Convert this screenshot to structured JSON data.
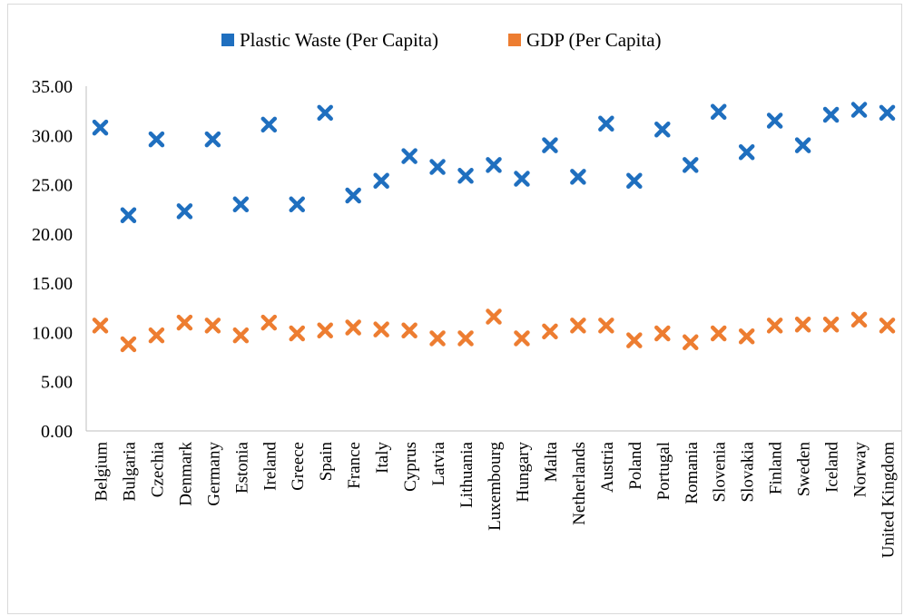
{
  "chart_data": {
    "type": "scatter",
    "categories": [
      "Belgium",
      "Bulgaria",
      "Czechia",
      "Denmark",
      "Germany",
      "Estonia",
      "Ireland",
      "Greece",
      "Spain",
      "France",
      "Italy",
      "Cyprus",
      "Latvia",
      "Lithuania",
      "Luxembourg",
      "Hungary",
      "Malta",
      "Netherlands",
      "Austria",
      "Poland",
      "Portugal",
      "Romania",
      "Slovenia",
      "Slovakia",
      "Finland",
      "Sweden",
      "Iceland",
      "Norway",
      "United Kingdom"
    ],
    "series": [
      {
        "name": "Plastic Waste (Per Capita)",
        "color": "#1f6fbf",
        "values": [
          30.8,
          21.9,
          29.6,
          22.3,
          29.6,
          23.0,
          31.1,
          23.0,
          32.3,
          23.9,
          25.4,
          27.9,
          26.8,
          25.9,
          27.0,
          25.6,
          29.0,
          25.8,
          31.2,
          25.4,
          30.6,
          27.0,
          32.4,
          28.3,
          31.5,
          29.0,
          32.1,
          32.6,
          32.3
        ]
      },
      {
        "name": "GDP  (Per Capita)",
        "color": "#ed7d31",
        "values": [
          10.7,
          8.8,
          9.7,
          11.0,
          10.7,
          9.7,
          11.0,
          9.9,
          10.2,
          10.5,
          10.3,
          10.2,
          9.4,
          9.4,
          11.6,
          9.4,
          10.1,
          10.7,
          10.7,
          9.2,
          9.9,
          9.0,
          9.9,
          9.6,
          10.7,
          10.8,
          10.8,
          11.3,
          10.7
        ]
      }
    ],
    "ylim": [
      0,
      35
    ],
    "yticks": [
      "0.00",
      "5.00",
      "10.00",
      "15.00",
      "20.00",
      "25.00",
      "30.00",
      "35.00"
    ],
    "grid": false,
    "legend_position": "top-center",
    "title": "",
    "xlabel": "",
    "ylabel": ""
  }
}
